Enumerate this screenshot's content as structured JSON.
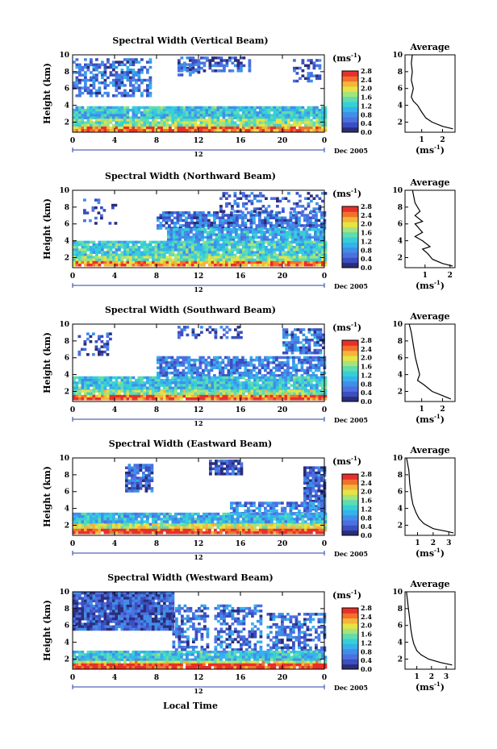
{
  "colors": {
    "colormap": [
      "#2b2d7a",
      "#3a4fc0",
      "#4d6fe0",
      "#3f8fe8",
      "#36b1ec",
      "#37cfd6",
      "#5fdcb0",
      "#a6e37a",
      "#e6e345",
      "#f5b43a",
      "#f2702c",
      "#e8302a"
    ],
    "line": "#000000",
    "axis_tick_blue": "#2b3ea8"
  },
  "figure": {
    "xaxis_label": "Local Time",
    "date_label": "Dec 2005",
    "date_tick": "12",
    "units_label": "(ms",
    "units_exp": "-1",
    "units_close": ")",
    "avg_xlabel": "(ms",
    "avg_xlabel_exp": "-1",
    "avg_xlabel_close": ")"
  },
  "chart_data": [
    {
      "type": "heatmap",
      "title": "Spectral Width (Vertical Beam)",
      "xlabel": "Local Time",
      "ylabel": "Height (km)",
      "xlim": [
        0,
        24
      ],
      "ylim": [
        0.8,
        10
      ],
      "x_ticks": [
        "0",
        "4",
        "8",
        "12",
        "16",
        "20",
        "0"
      ],
      "y_ticks": [
        "2",
        "4",
        "6",
        "8",
        "10"
      ],
      "colorbar": {
        "label": "(ms-1)",
        "range": [
          0.0,
          2.8
        ],
        "ticks": [
          "0.0",
          "0.4",
          "0.8",
          "1.2",
          "1.6",
          "2.0",
          "2.4",
          "2.8"
        ]
      },
      "average_profile": {
        "title": "Average",
        "xlabel": "(ms-1)",
        "x_ticks": [
          "1",
          "2"
        ],
        "xlim": [
          0.2,
          2.6
        ],
        "y_ticks": [
          "2",
          "4",
          "6",
          "8",
          "10"
        ],
        "ylim": [
          0.8,
          10
        ],
        "profile": [
          [
            0.55,
            10
          ],
          [
            0.5,
            9.0
          ],
          [
            0.55,
            8.0
          ],
          [
            0.5,
            7.0
          ],
          [
            0.6,
            6.0
          ],
          [
            0.5,
            5.0
          ],
          [
            0.6,
            4.5
          ],
          [
            0.8,
            4.0
          ],
          [
            1.0,
            3.2
          ],
          [
            1.2,
            2.5
          ],
          [
            1.5,
            2.0
          ],
          [
            2.0,
            1.5
          ],
          [
            2.5,
            1.2
          ]
        ]
      }
    },
    {
      "type": "heatmap",
      "title": "Spectral Width (Northward Beam)",
      "xlabel": "Local Time",
      "ylabel": "Height (km)",
      "xlim": [
        0,
        24
      ],
      "ylim": [
        0.8,
        10
      ],
      "x_ticks": [
        "0",
        "4",
        "8",
        "12",
        "16",
        "20",
        "0"
      ],
      "y_ticks": [
        "2",
        "4",
        "6",
        "8",
        "10"
      ],
      "colorbar": {
        "label": "(ms-1)",
        "range": [
          0.0,
          2.8
        ],
        "ticks": [
          "0.0",
          "0.4",
          "0.8",
          "1.2",
          "1.6",
          "2.0",
          "2.4",
          "2.8"
        ]
      },
      "average_profile": {
        "title": "Average",
        "xlabel": "(ms-1)",
        "x_ticks": [
          "1",
          "2"
        ],
        "xlim": [
          0.2,
          2.2
        ],
        "y_ticks": [
          "2",
          "4",
          "6",
          "8",
          "10"
        ],
        "ylim": [
          0.8,
          10
        ],
        "profile": [
          [
            0.5,
            10
          ],
          [
            0.6,
            8.5
          ],
          [
            0.8,
            7.5
          ],
          [
            0.6,
            7.0
          ],
          [
            0.9,
            6.3
          ],
          [
            0.6,
            6.0
          ],
          [
            0.9,
            5.0
          ],
          [
            0.6,
            4.5
          ],
          [
            0.9,
            4.0
          ],
          [
            1.2,
            3.3
          ],
          [
            0.9,
            3.0
          ],
          [
            1.1,
            2.5
          ],
          [
            1.3,
            1.8
          ],
          [
            1.7,
            1.3
          ],
          [
            2.1,
            1.0
          ]
        ]
      }
    },
    {
      "type": "heatmap",
      "title": "Spectral Width (Southward Beam)",
      "xlabel": "Local Time",
      "ylabel": "Height (km)",
      "xlim": [
        0,
        24
      ],
      "ylim": [
        0.8,
        10
      ],
      "x_ticks": [
        "0",
        "4",
        "8",
        "12",
        "16",
        "20",
        "0"
      ],
      "y_ticks": [
        "2",
        "4",
        "6",
        "8",
        "10"
      ],
      "colorbar": {
        "label": "(ms-1)",
        "range": [
          0.0,
          2.8
        ],
        "ticks": [
          "0.0",
          "0.4",
          "0.8",
          "1.2",
          "1.6",
          "2.0",
          "2.4",
          "2.8"
        ]
      },
      "average_profile": {
        "title": "Average",
        "xlabel": "(ms-1)",
        "x_ticks": [
          "1",
          "2"
        ],
        "xlim": [
          0.2,
          2.6
        ],
        "y_ticks": [
          "2",
          "4",
          "6",
          "8",
          "10"
        ],
        "ylim": [
          0.8,
          10
        ],
        "profile": [
          [
            0.4,
            10
          ],
          [
            0.5,
            9.0
          ],
          [
            0.6,
            7.5
          ],
          [
            0.7,
            6.0
          ],
          [
            0.8,
            5.0
          ],
          [
            0.9,
            4.0
          ],
          [
            0.8,
            3.3
          ],
          [
            1.1,
            2.8
          ],
          [
            1.5,
            2.0
          ],
          [
            2.0,
            1.5
          ],
          [
            2.4,
            1.1
          ]
        ]
      }
    },
    {
      "type": "heatmap",
      "title": "Spectral Width (Eastward Beam)",
      "xlabel": "Local Time",
      "ylabel": "Height (km)",
      "xlim": [
        0,
        24
      ],
      "ylim": [
        0.8,
        10
      ],
      "x_ticks": [
        "0",
        "4",
        "8",
        "12",
        "16",
        "20",
        "0"
      ],
      "y_ticks": [
        "2",
        "4",
        "6",
        "8",
        "10"
      ],
      "colorbar": {
        "label": "(ms-1)",
        "range": [
          0.0,
          2.8
        ],
        "ticks": [
          "0.0",
          "0.4",
          "0.8",
          "1.2",
          "1.6",
          "2.0",
          "2.4",
          "2.8"
        ]
      },
      "average_profile": {
        "title": "Average",
        "xlabel": "(ms-1)",
        "x_ticks": [
          "1",
          "2",
          "3"
        ],
        "xlim": [
          0.2,
          3.4
        ],
        "y_ticks": [
          "2",
          "4",
          "6",
          "8",
          "10"
        ],
        "ylim": [
          0.8,
          10
        ],
        "profile": [
          [
            0.3,
            10
          ],
          [
            0.45,
            8.5
          ],
          [
            0.5,
            7.0
          ],
          [
            0.6,
            5.5
          ],
          [
            0.7,
            4.5
          ],
          [
            0.9,
            3.5
          ],
          [
            1.1,
            2.8
          ],
          [
            1.4,
            2.2
          ],
          [
            2.0,
            1.6
          ],
          [
            2.8,
            1.3
          ],
          [
            3.3,
            1.1
          ]
        ]
      }
    },
    {
      "type": "heatmap",
      "title": "Spectral Width (Westward Beam)",
      "xlabel": "Local Time",
      "ylabel": "Height (km)",
      "xlim": [
        0,
        24
      ],
      "ylim": [
        0.8,
        10
      ],
      "x_ticks": [
        "0",
        "4",
        "8",
        "12",
        "16",
        "20",
        "0"
      ],
      "y_ticks": [
        "2",
        "4",
        "6",
        "8",
        "10"
      ],
      "colorbar": {
        "label": "(ms-1)",
        "range": [
          0.0,
          2.8
        ],
        "ticks": [
          "0.0",
          "0.4",
          "0.8",
          "1.2",
          "1.6",
          "2.0",
          "2.4",
          "2.8"
        ]
      },
      "average_profile": {
        "title": "Average",
        "xlabel": "(ms-1)",
        "x_ticks": [
          "1",
          "2",
          "3"
        ],
        "xlim": [
          0.2,
          3.6
        ],
        "y_ticks": [
          "2",
          "4",
          "6",
          "8",
          "10"
        ],
        "ylim": [
          0.8,
          10
        ],
        "profile": [
          [
            0.3,
            10
          ],
          [
            0.4,
            8.5
          ],
          [
            0.5,
            7.0
          ],
          [
            0.6,
            5.5
          ],
          [
            0.7,
            4.5
          ],
          [
            0.8,
            3.8
          ],
          [
            1.0,
            3.0
          ],
          [
            1.3,
            2.5
          ],
          [
            1.8,
            2.0
          ],
          [
            2.6,
            1.6
          ],
          [
            3.4,
            1.3
          ]
        ]
      }
    }
  ]
}
